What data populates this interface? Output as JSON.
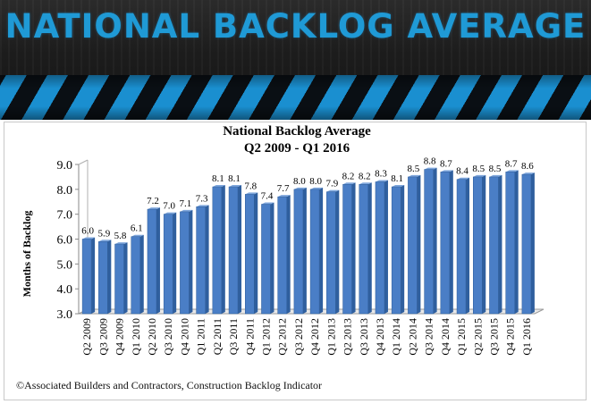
{
  "banner": {
    "title": "NATIONAL BACKLOG AVERAGE"
  },
  "credit": "©Associated Builders and Contractors, Construction Backlog Indicator",
  "colors": {
    "bar": "#4a7ec6",
    "bar_edge": "#2d5c99",
    "banner_text": "#1f9ad6",
    "banner_stripe": "#1a8fd0"
  },
  "chart_data": {
    "type": "bar",
    "title": "National Backlog Average",
    "subtitle": "Q2 2009 - Q1 2016",
    "ylabel": "Months of Backlog",
    "xlabel": "",
    "ylim": [
      3.0,
      9.0
    ],
    "yticks": [
      "3.0",
      "4.0",
      "5.0",
      "6.0",
      "7.0",
      "8.0",
      "9.0"
    ],
    "grid": false,
    "legend": "none",
    "style": "3d-columns",
    "categories": [
      "Q2 2009",
      "Q3 2009",
      "Q4 2009",
      "Q1 2010",
      "Q2 2010",
      "Q3 2010",
      "Q4 2010",
      "Q1 2011",
      "Q2 2011",
      "Q3 2011",
      "Q4 2011",
      "Q1 2012",
      "Q2 2012",
      "Q3 2012",
      "Q4 2012",
      "Q1 2013",
      "Q2 2013",
      "Q3 2013",
      "Q4 2013",
      "Q1 2014",
      "Q2 2014",
      "Q3 2014",
      "Q4 2014",
      "Q1 2015",
      "Q2 2015",
      "Q3 2015",
      "Q4 2015",
      "Q1 2016"
    ],
    "values": [
      6.0,
      5.9,
      5.8,
      6.1,
      7.2,
      7.0,
      7.1,
      7.3,
      8.1,
      8.1,
      7.8,
      7.4,
      7.7,
      8.0,
      8.0,
      7.9,
      8.2,
      8.2,
      8.3,
      8.1,
      8.5,
      8.8,
      8.7,
      8.4,
      8.5,
      8.5,
      8.7,
      8.6
    ],
    "labels": [
      "6.0",
      "5.9",
      "5.8",
      "6.1",
      "7.2",
      "7.0",
      "7.1",
      "7.3",
      "8.1",
      "8.1",
      "7.8",
      "7.4",
      "7.7",
      "8.0",
      "8.0",
      "7.9",
      "8.2",
      "8.2",
      "8.3",
      "8.1",
      "8.5",
      "8.8",
      "8.7",
      "8.4",
      "8.5",
      "8.5",
      "8.7",
      "8.6"
    ]
  }
}
